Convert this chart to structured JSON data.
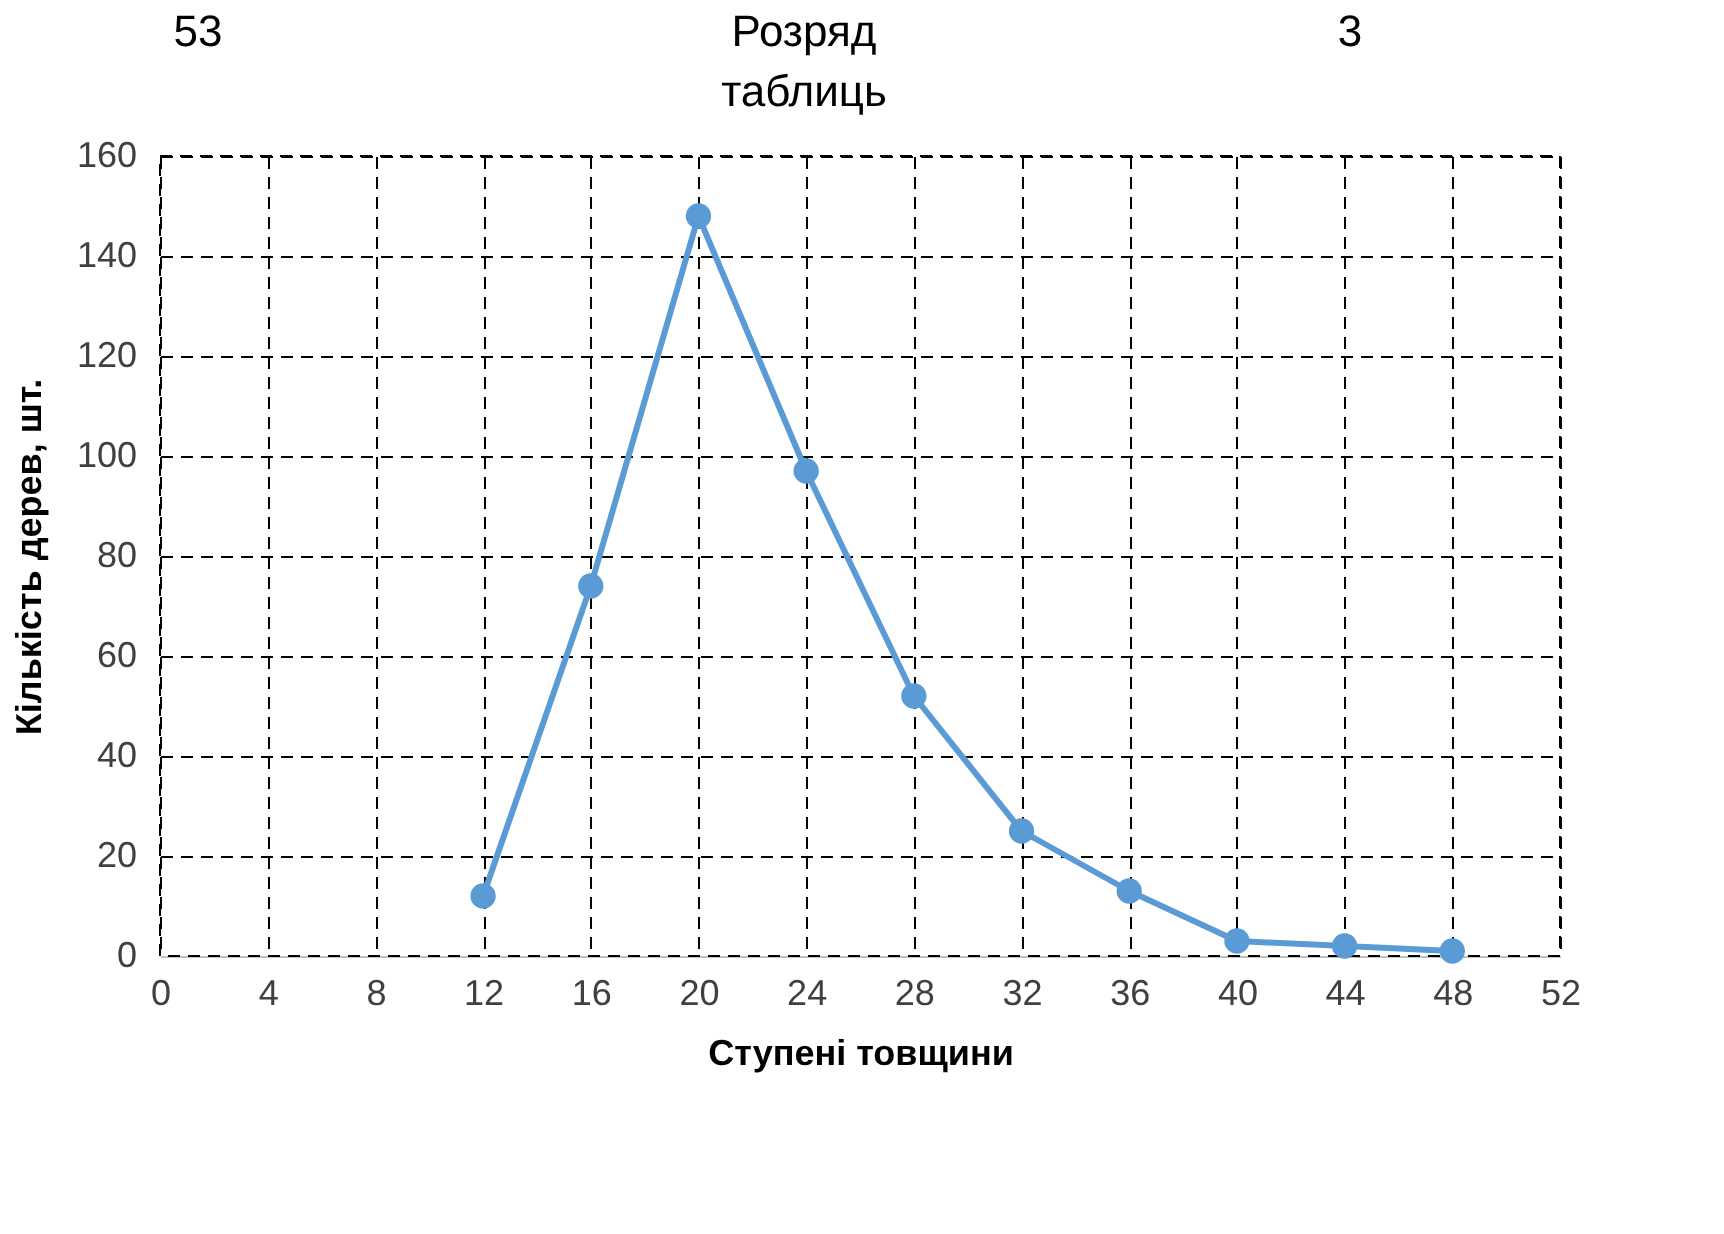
{
  "chart_data": {
    "type": "line",
    "xlabel": "Ступені товщини",
    "ylabel": "Кількість дерев, шт.",
    "annotations": [
      "53",
      "Розряд таблиць",
      "3"
    ],
    "x": [
      12,
      16,
      20,
      24,
      28,
      32,
      36,
      40,
      44,
      48
    ],
    "series": [
      {
        "color": "#5b9bd5",
        "values": [
          12,
          74,
          148,
          97,
          52,
          25,
          13,
          3,
          2,
          1
        ]
      }
    ],
    "xlim": [
      0,
      52
    ],
    "xticks": [
      0,
      4,
      8,
      12,
      16,
      20,
      24,
      28,
      32,
      36,
      40,
      44,
      48,
      52
    ],
    "ylim": [
      0,
      160
    ],
    "yticks": [
      0,
      20,
      40,
      60,
      80,
      100,
      120,
      140,
      160
    ],
    "grid": true,
    "marker": "circle",
    "line_style": "solid"
  }
}
